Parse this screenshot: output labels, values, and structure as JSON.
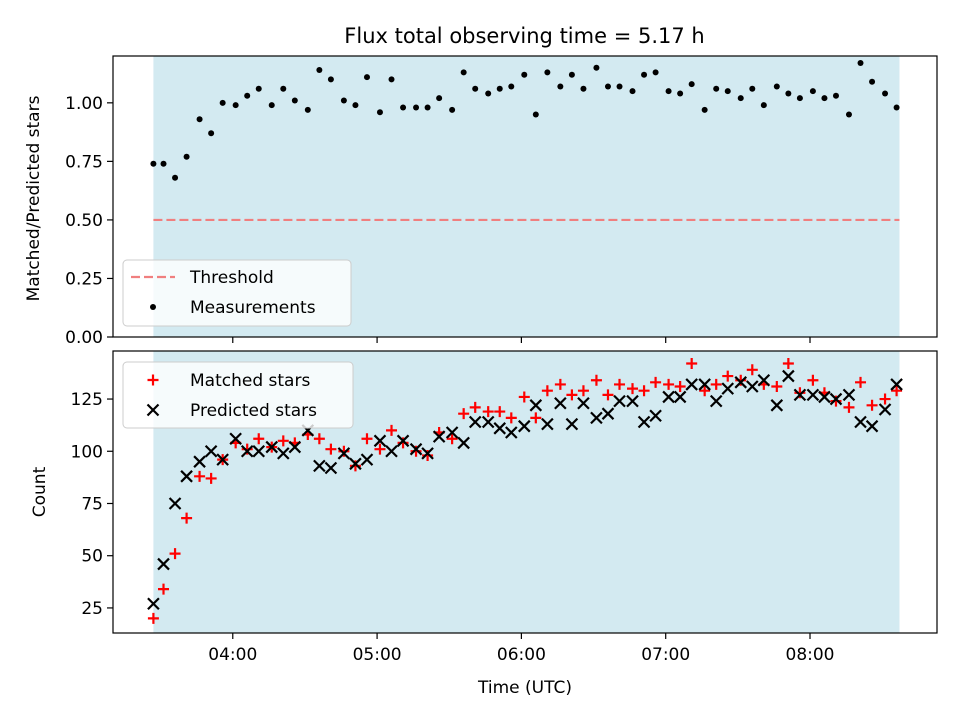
{
  "title": "Flux total observing time = 5.17 h",
  "colors": {
    "background": "#ffffff",
    "band": "#d3eaf1",
    "threshold": "#f07f7f",
    "matched": "#ff0000",
    "predicted": "#000000",
    "measurement": "#000000"
  },
  "chart_data": [
    {
      "type": "scatter",
      "panel": "top",
      "ylabel": "Matched/Predicted stars",
      "ylim": [
        0,
        1.2
      ],
      "yticks": [
        "0.00",
        "0.25",
        "0.50",
        "0.75",
        "1.00"
      ],
      "ytick_values": [
        0,
        0.25,
        0.5,
        0.75,
        1.0
      ],
      "xlim_hours": [
        3.17,
        8.88
      ],
      "band_hours": [
        3.45,
        8.62
      ],
      "threshold": 0.5,
      "legend_position": "lower-left",
      "legend": [
        {
          "label": "Threshold",
          "style": "dashed-line"
        },
        {
          "label": "Measurements",
          "style": "dot"
        }
      ],
      "series": [
        {
          "name": "Measurements",
          "x_hours": [
            3.45,
            3.52,
            3.6,
            3.68,
            3.77,
            3.85,
            3.93,
            4.02,
            4.1,
            4.18,
            4.27,
            4.35,
            4.43,
            4.52,
            4.6,
            4.68,
            4.77,
            4.85,
            4.93,
            5.02,
            5.1,
            5.18,
            5.27,
            5.35,
            5.43,
            5.52,
            5.6,
            5.68,
            5.77,
            5.85,
            5.93,
            6.02,
            6.1,
            6.18,
            6.27,
            6.35,
            6.43,
            6.52,
            6.6,
            6.68,
            6.77,
            6.85,
            6.93,
            7.02,
            7.1,
            7.18,
            7.27,
            7.35,
            7.43,
            7.52,
            7.6,
            7.68,
            7.77,
            7.85,
            7.93,
            8.02,
            8.1,
            8.18,
            8.27,
            8.35,
            8.43,
            8.52,
            8.6
          ],
          "y": [
            0.74,
            0.74,
            0.68,
            0.77,
            0.93,
            0.87,
            1.0,
            0.99,
            1.03,
            1.06,
            0.99,
            1.06,
            1.01,
            0.97,
            1.14,
            1.1,
            1.01,
            0.99,
            1.11,
            0.96,
            1.1,
            0.98,
            0.98,
            0.98,
            1.02,
            0.97,
            1.13,
            1.06,
            1.04,
            1.06,
            1.07,
            1.12,
            0.95,
            1.13,
            1.07,
            1.12,
            1.06,
            1.15,
            1.07,
            1.07,
            1.05,
            1.12,
            1.13,
            1.05,
            1.04,
            1.08,
            0.97,
            1.06,
            1.05,
            1.02,
            1.06,
            0.99,
            1.07,
            1.04,
            1.02,
            1.05,
            1.02,
            1.03,
            0.95,
            1.17,
            1.09,
            1.04,
            0.98
          ]
        }
      ]
    },
    {
      "type": "scatter",
      "panel": "bottom",
      "xlabel": "Time (UTC)",
      "ylabel": "Count",
      "ylim": [
        13,
        148
      ],
      "yticks": [
        "25",
        "50",
        "75",
        "100",
        "125"
      ],
      "ytick_values": [
        25,
        50,
        75,
        100,
        125
      ],
      "xticks": [
        "04:00",
        "05:00",
        "06:00",
        "07:00",
        "08:00"
      ],
      "xtick_hours": [
        4,
        5,
        6,
        7,
        8
      ],
      "xlim_hours": [
        3.17,
        8.88
      ],
      "band_hours": [
        3.45,
        8.62
      ],
      "legend_position": "upper-left",
      "series": [
        {
          "name": "Matched stars",
          "marker": "plus",
          "x_hours": [
            3.45,
            3.52,
            3.6,
            3.68,
            3.77,
            3.85,
            3.93,
            4.02,
            4.1,
            4.18,
            4.27,
            4.35,
            4.43,
            4.52,
            4.6,
            4.68,
            4.77,
            4.85,
            4.93,
            5.02,
            5.1,
            5.18,
            5.27,
            5.35,
            5.43,
            5.52,
            5.6,
            5.68,
            5.77,
            5.85,
            5.93,
            6.02,
            6.1,
            6.18,
            6.27,
            6.35,
            6.43,
            6.52,
            6.6,
            6.68,
            6.77,
            6.85,
            6.93,
            7.02,
            7.1,
            7.18,
            7.27,
            7.35,
            7.43,
            7.52,
            7.6,
            7.68,
            7.77,
            7.85,
            7.93,
            8.02,
            8.1,
            8.18,
            8.27,
            8.35,
            8.43,
            8.52,
            8.6
          ],
          "y": [
            20,
            34,
            51,
            68,
            88,
            87,
            96,
            104,
            101,
            106,
            102,
            105,
            104,
            108,
            106,
            101,
            100,
            93,
            106,
            101,
            110,
            104,
            100,
            98,
            109,
            106,
            118,
            121,
            119,
            119,
            116,
            126,
            116,
            129,
            132,
            127,
            129,
            134,
            127,
            132,
            130,
            129,
            133,
            132,
            131,
            142,
            129,
            132,
            136,
            134,
            139,
            132,
            131,
            142,
            128,
            134,
            128,
            124,
            121,
            133,
            122,
            125,
            129
          ]
        },
        {
          "name": "Predicted stars",
          "marker": "x",
          "x_hours": [
            3.45,
            3.52,
            3.6,
            3.68,
            3.77,
            3.85,
            3.93,
            4.02,
            4.1,
            4.18,
            4.27,
            4.35,
            4.43,
            4.52,
            4.6,
            4.68,
            4.77,
            4.85,
            4.93,
            5.02,
            5.1,
            5.18,
            5.27,
            5.35,
            5.43,
            5.52,
            5.6,
            5.68,
            5.77,
            5.85,
            5.93,
            6.02,
            6.1,
            6.18,
            6.27,
            6.35,
            6.43,
            6.52,
            6.6,
            6.68,
            6.77,
            6.85,
            6.93,
            7.02,
            7.1,
            7.18,
            7.27,
            7.35,
            7.43,
            7.52,
            7.6,
            7.68,
            7.77,
            7.85,
            7.93,
            8.02,
            8.1,
            8.18,
            8.27,
            8.35,
            8.43,
            8.52,
            8.6
          ],
          "y": [
            27,
            46,
            75,
            88,
            95,
            100,
            96,
            106,
            100,
            100,
            102,
            99,
            102,
            110,
            93,
            92,
            99,
            94,
            96,
            105,
            100,
            105,
            101,
            99,
            107,
            109,
            104,
            114,
            114,
            111,
            109,
            112,
            122,
            113,
            123,
            113,
            123,
            116,
            118,
            124,
            124,
            114,
            117,
            126,
            126,
            132,
            132,
            124,
            130,
            133,
            131,
            134,
            122,
            136,
            127,
            127,
            126,
            125,
            127,
            114,
            112,
            120,
            132
          ]
        }
      ]
    }
  ]
}
